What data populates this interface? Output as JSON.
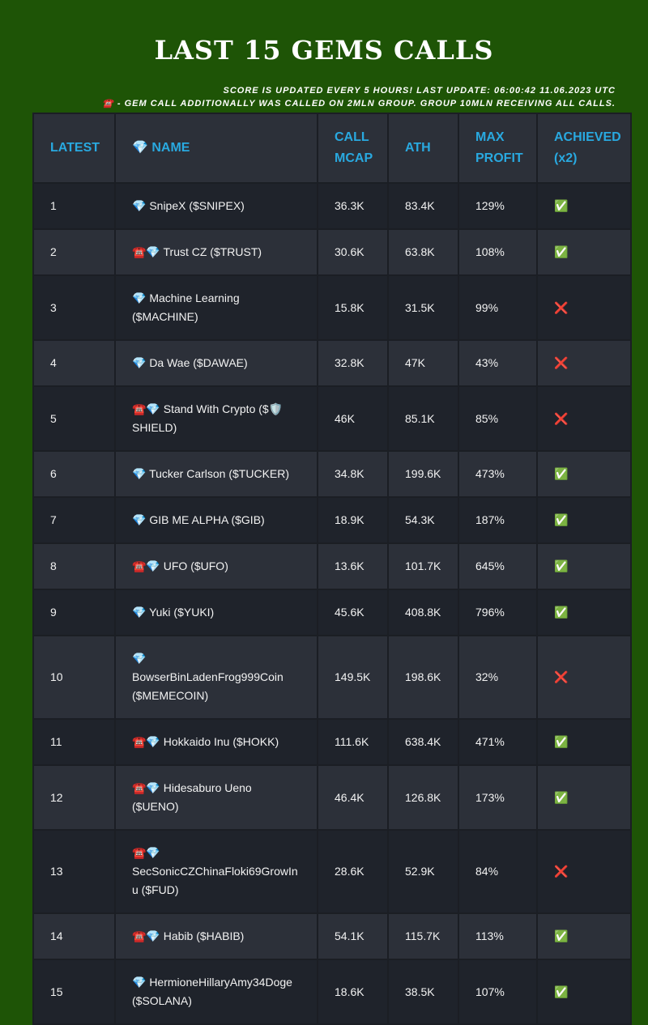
{
  "header": {
    "title": "LAST 15 GEMS CALLS",
    "notes": [
      "SCORE IS UPDATED EVERY 5 HOURS! LAST UPDATE: 06:00:42 11.06.2023 UTC",
      "☎️ - GEM CALL ADDITIONALLY WAS CALLED ON 2MLN GROUP. GROUP 10MLN RECEIVING ALL CALLS."
    ]
  },
  "table": {
    "columns": [
      "LATEST",
      "💎 NAME",
      "CALL MCAP",
      "ATH",
      "MAX PROFIT",
      "ACHIEVED (x2)"
    ],
    "rows": [
      [
        "1",
        "💎 SnipeX ($SNIPEX)",
        "36.3K",
        "83.4K",
        "129%",
        "✅"
      ],
      [
        "2",
        "☎️💎 Trust CZ ($TRUST)",
        "30.6K",
        "63.8K",
        "108%",
        "✅"
      ],
      [
        "3",
        "💎 Machine Learning ($MACHINE)",
        "15.8K",
        "31.5K",
        "99%",
        "❌"
      ],
      [
        "4",
        "💎 Da Wae ($DAWAE)",
        "32.8K",
        "47K",
        "43%",
        "❌"
      ],
      [
        "5",
        "☎️💎 Stand With Crypto ($🛡️SHIELD)",
        "46K",
        "85.1K",
        "85%",
        "❌"
      ],
      [
        "6",
        "💎 Tucker Carlson ($TUCKER)",
        "34.8K",
        "199.6K",
        "473%",
        "✅"
      ],
      [
        "7",
        "💎 GIB ME ALPHA ($GIB)",
        "18.9K",
        "54.3K",
        "187%",
        "✅"
      ],
      [
        "8",
        "☎️💎 UFO ($UFO)",
        "13.6K",
        "101.7K",
        "645%",
        "✅"
      ],
      [
        "9",
        "💎 Yuki ($YUKI)",
        "45.6K",
        "408.8K",
        "796%",
        "✅"
      ],
      [
        "10",
        "💎 BowserBinLadenFrog999Coin ($MEMECOIN)",
        "149.5K",
        "198.6K",
        "32%",
        "❌"
      ],
      [
        "11",
        "☎️💎 Hokkaido Inu ($HOKK)",
        "111.6K",
        "638.4K",
        "471%",
        "✅"
      ],
      [
        "12",
        "☎️💎 Hidesaburo Ueno ($UENO)",
        "46.4K",
        "126.8K",
        "173%",
        "✅"
      ],
      [
        "13",
        "☎️💎 SecSonicCZChinaFloki69GrowInu ($FUD)",
        "28.6K",
        "52.9K",
        "84%",
        "❌"
      ],
      [
        "14",
        "☎️💎 Habib ($HABIB)",
        "54.1K",
        "115.7K",
        "113%",
        "✅"
      ],
      [
        "15",
        "💎 HermioneHillaryAmy34Doge ($SOLANA)",
        "18.6K",
        "38.5K",
        "107%",
        "✅"
      ]
    ]
  }
}
